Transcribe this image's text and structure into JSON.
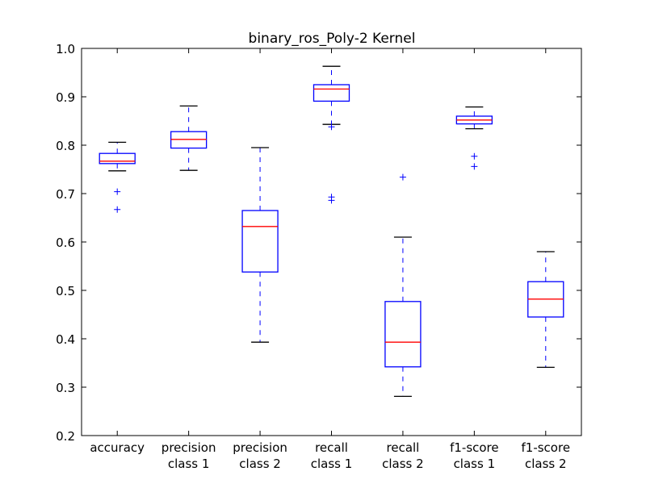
{
  "chart_data": {
    "type": "box",
    "title": "binary_ros_Poly-2 Kernel",
    "xlabel": "",
    "ylabel": "",
    "ylim": [
      0.2,
      1.0
    ],
    "yticks": [
      "0.2",
      "0.3",
      "0.4",
      "0.5",
      "0.6",
      "0.7",
      "0.8",
      "0.9",
      "1.0"
    ],
    "grid": false,
    "colors": {
      "box": "#0000ff",
      "median": "#ff0000",
      "cap": "#000000",
      "flier": "#0000ff"
    },
    "categories": [
      {
        "label": [
          "accuracy"
        ],
        "whislo": 0.747,
        "q1": 0.762,
        "med": 0.767,
        "q3": 0.783,
        "whishi": 0.806,
        "fliers": [
          0.704,
          0.667
        ]
      },
      {
        "label": [
          "precision",
          "class 1"
        ],
        "whislo": 0.748,
        "q1": 0.794,
        "med": 0.812,
        "q3": 0.828,
        "whishi": 0.881,
        "fliers": []
      },
      {
        "label": [
          "precision",
          "class 2"
        ],
        "whislo": 0.393,
        "q1": 0.538,
        "med": 0.632,
        "q3": 0.665,
        "whishi": 0.795,
        "fliers": []
      },
      {
        "label": [
          "recall",
          "class 1"
        ],
        "whislo": 0.843,
        "q1": 0.891,
        "med": 0.916,
        "q3": 0.925,
        "whishi": 0.963,
        "fliers": [
          0.838,
          0.693,
          0.686
        ]
      },
      {
        "label": [
          "recall",
          "class 2"
        ],
        "whislo": 0.281,
        "q1": 0.342,
        "med": 0.393,
        "q3": 0.477,
        "whishi": 0.61,
        "fliers": [
          0.734
        ]
      },
      {
        "label": [
          "f1-score",
          "class 1"
        ],
        "whislo": 0.834,
        "q1": 0.844,
        "med": 0.852,
        "q3": 0.86,
        "whishi": 0.879,
        "fliers": [
          0.777,
          0.756
        ]
      },
      {
        "label": [
          "f1-score",
          "class 2"
        ],
        "whislo": 0.341,
        "q1": 0.445,
        "med": 0.482,
        "q3": 0.518,
        "whishi": 0.58,
        "fliers": []
      }
    ]
  }
}
